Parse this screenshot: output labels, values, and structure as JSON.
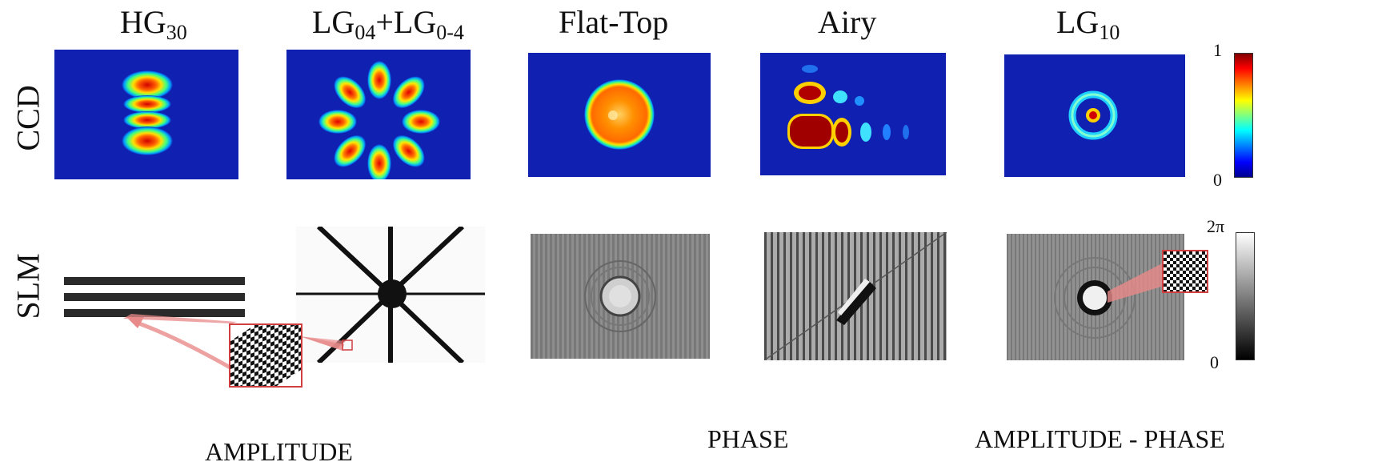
{
  "columns": [
    {
      "base": "HG",
      "sub": "30",
      "plus": "",
      "base2": "",
      "sub2": ""
    },
    {
      "base": "LG",
      "sub": "04",
      "plus": "+",
      "base2": "LG",
      "sub2": "0-4"
    },
    {
      "base": "Flat-Top",
      "sub": "",
      "plus": "",
      "base2": "",
      "sub2": ""
    },
    {
      "base": "Airy",
      "sub": "",
      "plus": "",
      "base2": "",
      "sub2": ""
    },
    {
      "base": "LG",
      "sub": "10",
      "plus": "",
      "base2": "",
      "sub2": ""
    }
  ],
  "rows": {
    "ccd": "CCD",
    "slm": "SLM"
  },
  "bottom_labels": {
    "amplitude": "AMPLITUDE",
    "phase": "PHASE",
    "amp_phase": "AMPLITUDE - PHASE"
  },
  "colorbar_ccd": {
    "max": "1",
    "min": "0",
    "colormap": "jet"
  },
  "colorbar_slm": {
    "max": "2π",
    "min": "0",
    "colormap": "gray"
  },
  "colors": {
    "ccd_background": "#1020b0",
    "callout": "#e88a8a",
    "callout_border": "#d04040",
    "mask_dark": "#2a2a2a"
  }
}
